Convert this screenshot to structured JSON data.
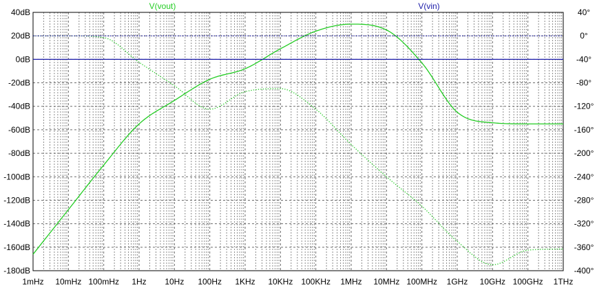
{
  "chart_data": {
    "type": "line",
    "x_scale": "log",
    "x_range": [
      "1mHz",
      "1THz"
    ],
    "x_ticks": [
      "1mHz",
      "10mHz",
      "100mHz",
      "1Hz",
      "10Hz",
      "100Hz",
      "1KHz",
      "10KHz",
      "100KHz",
      "1MHz",
      "10MHz",
      "100MHz",
      "1GHz",
      "10GHz",
      "100GHz",
      "1THz"
    ],
    "y_left_ticks": [
      "40dB",
      "20dB",
      "0dB",
      "-20dB",
      "-40dB",
      "-60dB",
      "-80dB",
      "-100dB",
      "-120dB",
      "-140dB",
      "-160dB",
      "-180dB"
    ],
    "y_left_range": [
      -180,
      40
    ],
    "y_right_ticks": [
      "40°",
      "0°",
      "-40°",
      "-80°",
      "-120°",
      "-160°",
      "-200°",
      "-240°",
      "-280°",
      "-320°",
      "-360°",
      "-400°"
    ],
    "y_right_range": [
      -400,
      40
    ],
    "grid": true,
    "series": [
      {
        "name": "V(vout)",
        "color": "#22cc22",
        "magnitude_db": {
          "freq_hz": [
            0.001,
            0.01,
            0.1,
            1,
            10,
            100,
            1000,
            10000,
            100000,
            1000000,
            10000000,
            100000000,
            1000000000,
            10000000000,
            100000000000,
            1000000000000
          ],
          "db": [
            -166,
            -128,
            -90,
            -55,
            -35,
            -17,
            -8,
            9,
            24,
            30,
            25,
            -3,
            -45,
            -54,
            -55,
            -55
          ]
        },
        "phase_deg": {
          "freq_hz": [
            0.001,
            0.01,
            0.1,
            1,
            10,
            100,
            1000,
            10000,
            100000,
            1000000,
            10000000,
            100000000,
            1000000000,
            10000000000,
            100000000000,
            1000000000000
          ],
          "deg": [
            0,
            0,
            -3,
            -45,
            -85,
            -125,
            -95,
            -90,
            -125,
            -185,
            -240,
            -290,
            -350,
            -390,
            -365,
            -363
          ]
        }
      },
      {
        "name": "V(vin)",
        "color": "#1a1aa8",
        "magnitude_db": {
          "freq_hz": [
            0.001,
            1000000000000
          ],
          "db": [
            0,
            0
          ]
        },
        "phase_deg": {
          "freq_hz": [
            0.001,
            1000000000000
          ],
          "deg": [
            0,
            0
          ]
        }
      }
    ]
  }
}
